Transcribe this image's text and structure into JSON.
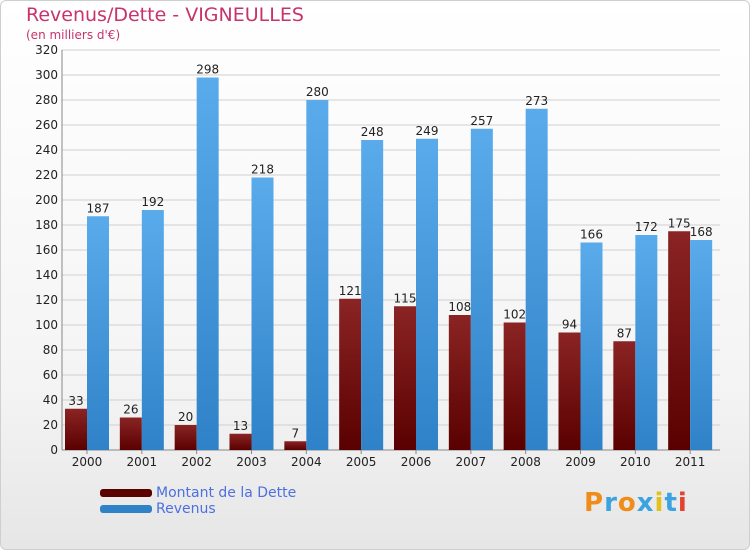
{
  "title": "Revenus/Dette - VIGNEULLES",
  "subtitle": "(en milliers d'€)",
  "logo": {
    "text": "Proxiti",
    "colors": [
      "#f08c1a",
      "#3aa3e0",
      "#f08c1a",
      "#3aa3e0",
      "#e2c21a",
      "#3aa3e0",
      "#e2432e"
    ]
  },
  "colors": {
    "dette_top": "#8b2424",
    "dette_bottom": "#5a0000",
    "revenus_top": "#5aabeb",
    "revenus_bottom": "#2f82c8",
    "text_accent": "#c8336b",
    "legend_text": "#4d6fe0"
  },
  "chart_data": {
    "type": "bar",
    "title": "Revenus/Dette - VIGNEULLES",
    "ylabel": "(en milliers d'€)",
    "categories": [
      "2000",
      "2001",
      "2002",
      "2003",
      "2004",
      "2005",
      "2006",
      "2007",
      "2008",
      "2009",
      "2010",
      "2011"
    ],
    "series": [
      {
        "name": "Montant de la Dette",
        "values": [
          33,
          26,
          20,
          13,
          7,
          121,
          115,
          108,
          102,
          94,
          87,
          175
        ]
      },
      {
        "name": "Revenus",
        "values": [
          187,
          192,
          298,
          218,
          280,
          248,
          249,
          257,
          273,
          166,
          172,
          168
        ]
      }
    ],
    "ylim": [
      0,
      320
    ],
    "yticks": [
      0,
      20,
      40,
      60,
      80,
      100,
      120,
      140,
      160,
      180,
      200,
      220,
      240,
      260,
      280,
      300,
      320
    ],
    "grid": true,
    "legend": "bottom-left"
  }
}
